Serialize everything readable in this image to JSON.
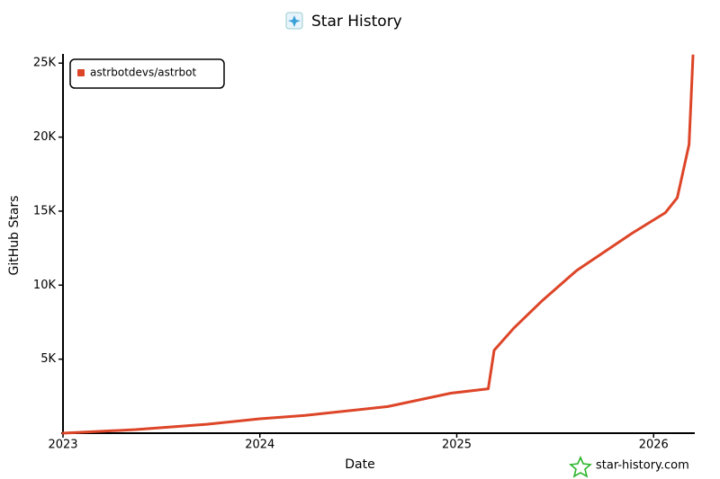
{
  "chart_data": {
    "type": "line",
    "title": "Star History",
    "x_label": "Date",
    "y_label": "GitHub Stars",
    "watermark": "star-history.com",
    "series": [
      {
        "name": "astrbotdevs/astrbot",
        "color": "#dd4528",
        "x": [
          2023.0,
          2023.37,
          2023.73,
          2024.0,
          2024.23,
          2024.65,
          2024.97,
          2025.16,
          2025.19,
          2025.29,
          2025.43,
          2025.61,
          2025.89,
          2026.06,
          2026.12,
          2026.18,
          2026.2
        ],
        "values": [
          0,
          240,
          600,
          970,
          1200,
          1800,
          2700,
          3000,
          5600,
          7100,
          8900,
          11000,
          13500,
          14900,
          15900,
          19500,
          25500
        ]
      }
    ],
    "xlim": [
      2023,
      2026.2
    ],
    "xticks": [
      2023,
      2024,
      2025,
      2026
    ],
    "ylim": [
      0,
      25500
    ],
    "yticks": [
      {
        "value": 5000,
        "label": "5K"
      },
      {
        "value": 10000,
        "label": "10K"
      },
      {
        "value": 15000,
        "label": "15K"
      },
      {
        "value": 20000,
        "label": "20K"
      },
      {
        "value": 25000,
        "label": "25K"
      }
    ],
    "legend": "top-left"
  }
}
